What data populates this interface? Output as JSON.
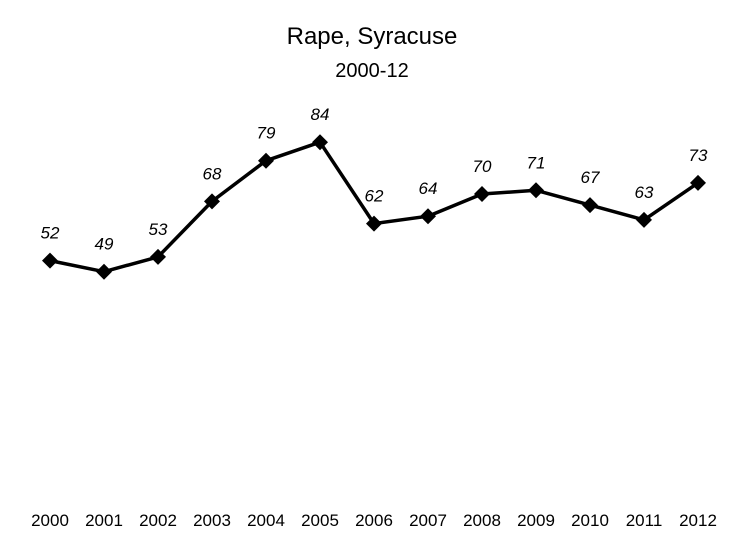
{
  "chart_data": {
    "type": "line",
    "title": "Rape, Syracuse",
    "subtitle": "2000-12",
    "categories": [
      "2000",
      "2001",
      "2002",
      "2003",
      "2004",
      "2005",
      "2006",
      "2007",
      "2008",
      "2009",
      "2010",
      "2011",
      "2012"
    ],
    "series": [
      {
        "values": [
          52,
          49,
          53,
          68,
          79,
          84,
          62,
          64,
          70,
          71,
          67,
          63,
          73
        ],
        "color": "#000000",
        "marker": "diamond"
      }
    ],
    "data_labels": [
      "52",
      "49",
      "53",
      "68",
      "79",
      "84",
      "62",
      "64",
      "70",
      "71",
      "67",
      "63",
      "73"
    ],
    "xlabel": "",
    "ylabel": "",
    "ylim": [
      0,
      90
    ],
    "grid": false,
    "legend": "none",
    "y_axis_visible": false,
    "x_axis_line_visible": false
  }
}
